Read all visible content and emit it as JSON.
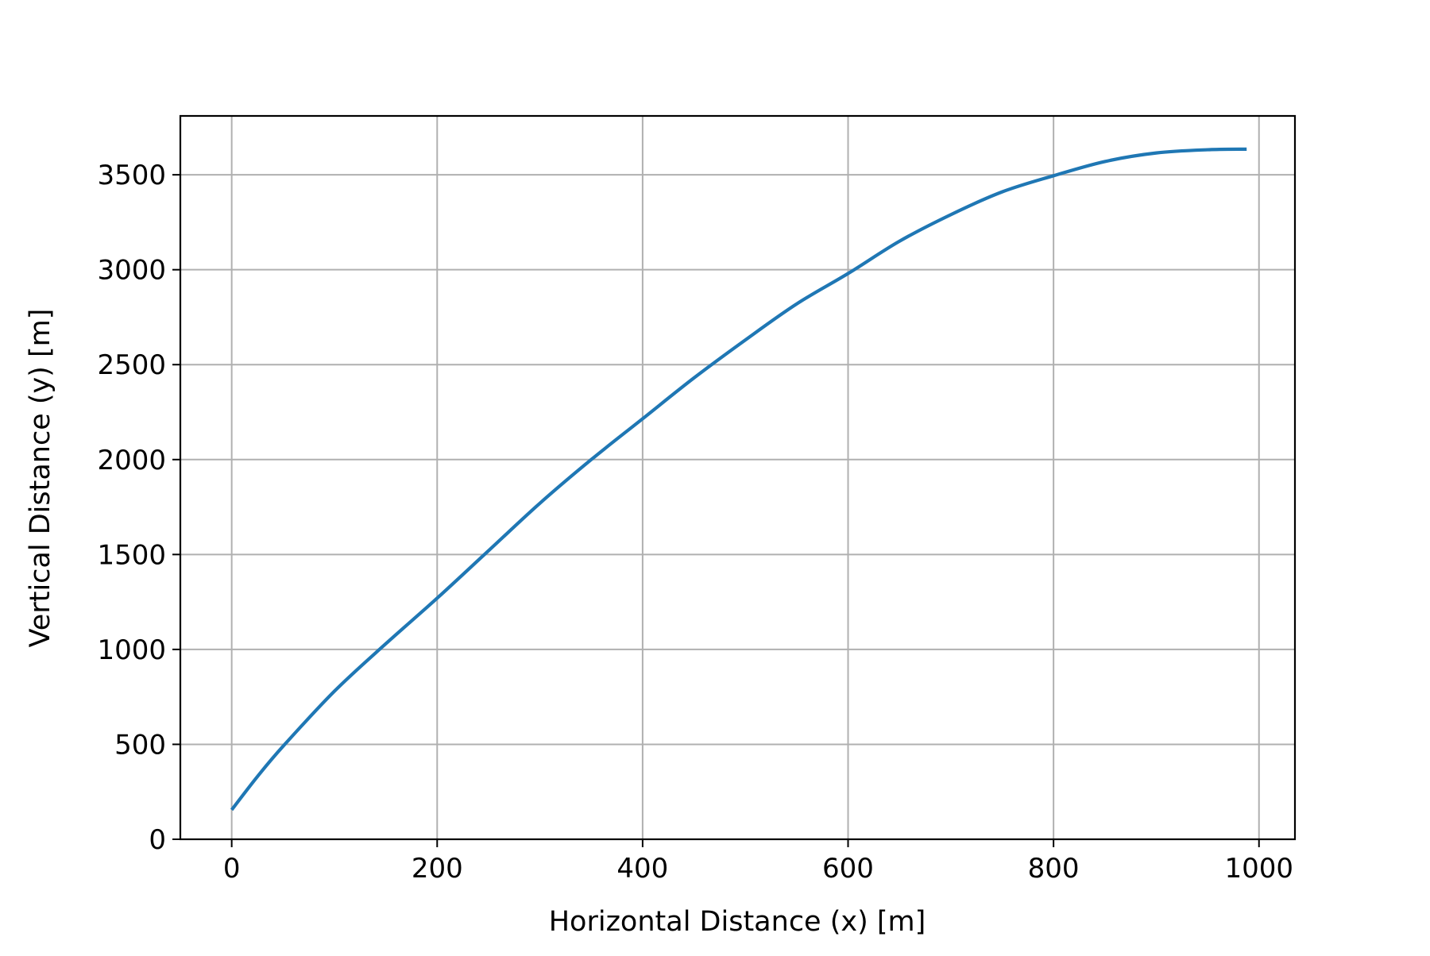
{
  "chart_data": {
    "type": "line",
    "title": "",
    "xlabel": "Horizontal Distance (x) [m]",
    "ylabel": "Vertical Distance (y) [m]",
    "xlim": [
      -50,
      1035
    ],
    "ylim": [
      0,
      3810
    ],
    "xticks": [
      0,
      200,
      400,
      600,
      800,
      1000
    ],
    "yticks": [
      0,
      500,
      1000,
      1500,
      2000,
      2500,
      3000,
      3500
    ],
    "xtick_labels": [
      "0",
      "200",
      "400",
      "600",
      "800",
      "1000"
    ],
    "ytick_labels": [
      "0",
      "500",
      "1000",
      "1500",
      "2000",
      "2500",
      "3000",
      "3500"
    ],
    "grid": true,
    "legend": false,
    "series": [
      {
        "color": "#1f77b4",
        "x": [
          0,
          25,
          50,
          100,
          150,
          200,
          250,
          300,
          350,
          400,
          450,
          500,
          550,
          600,
          650,
          700,
          750,
          800,
          850,
          900,
          950,
          988
        ],
        "y": [
          155,
          330,
          490,
          780,
          1030,
          1270,
          1520,
          1770,
          2000,
          2215,
          2430,
          2630,
          2820,
          2980,
          3150,
          3290,
          3410,
          3495,
          3570,
          3615,
          3632,
          3635
        ]
      }
    ]
  }
}
